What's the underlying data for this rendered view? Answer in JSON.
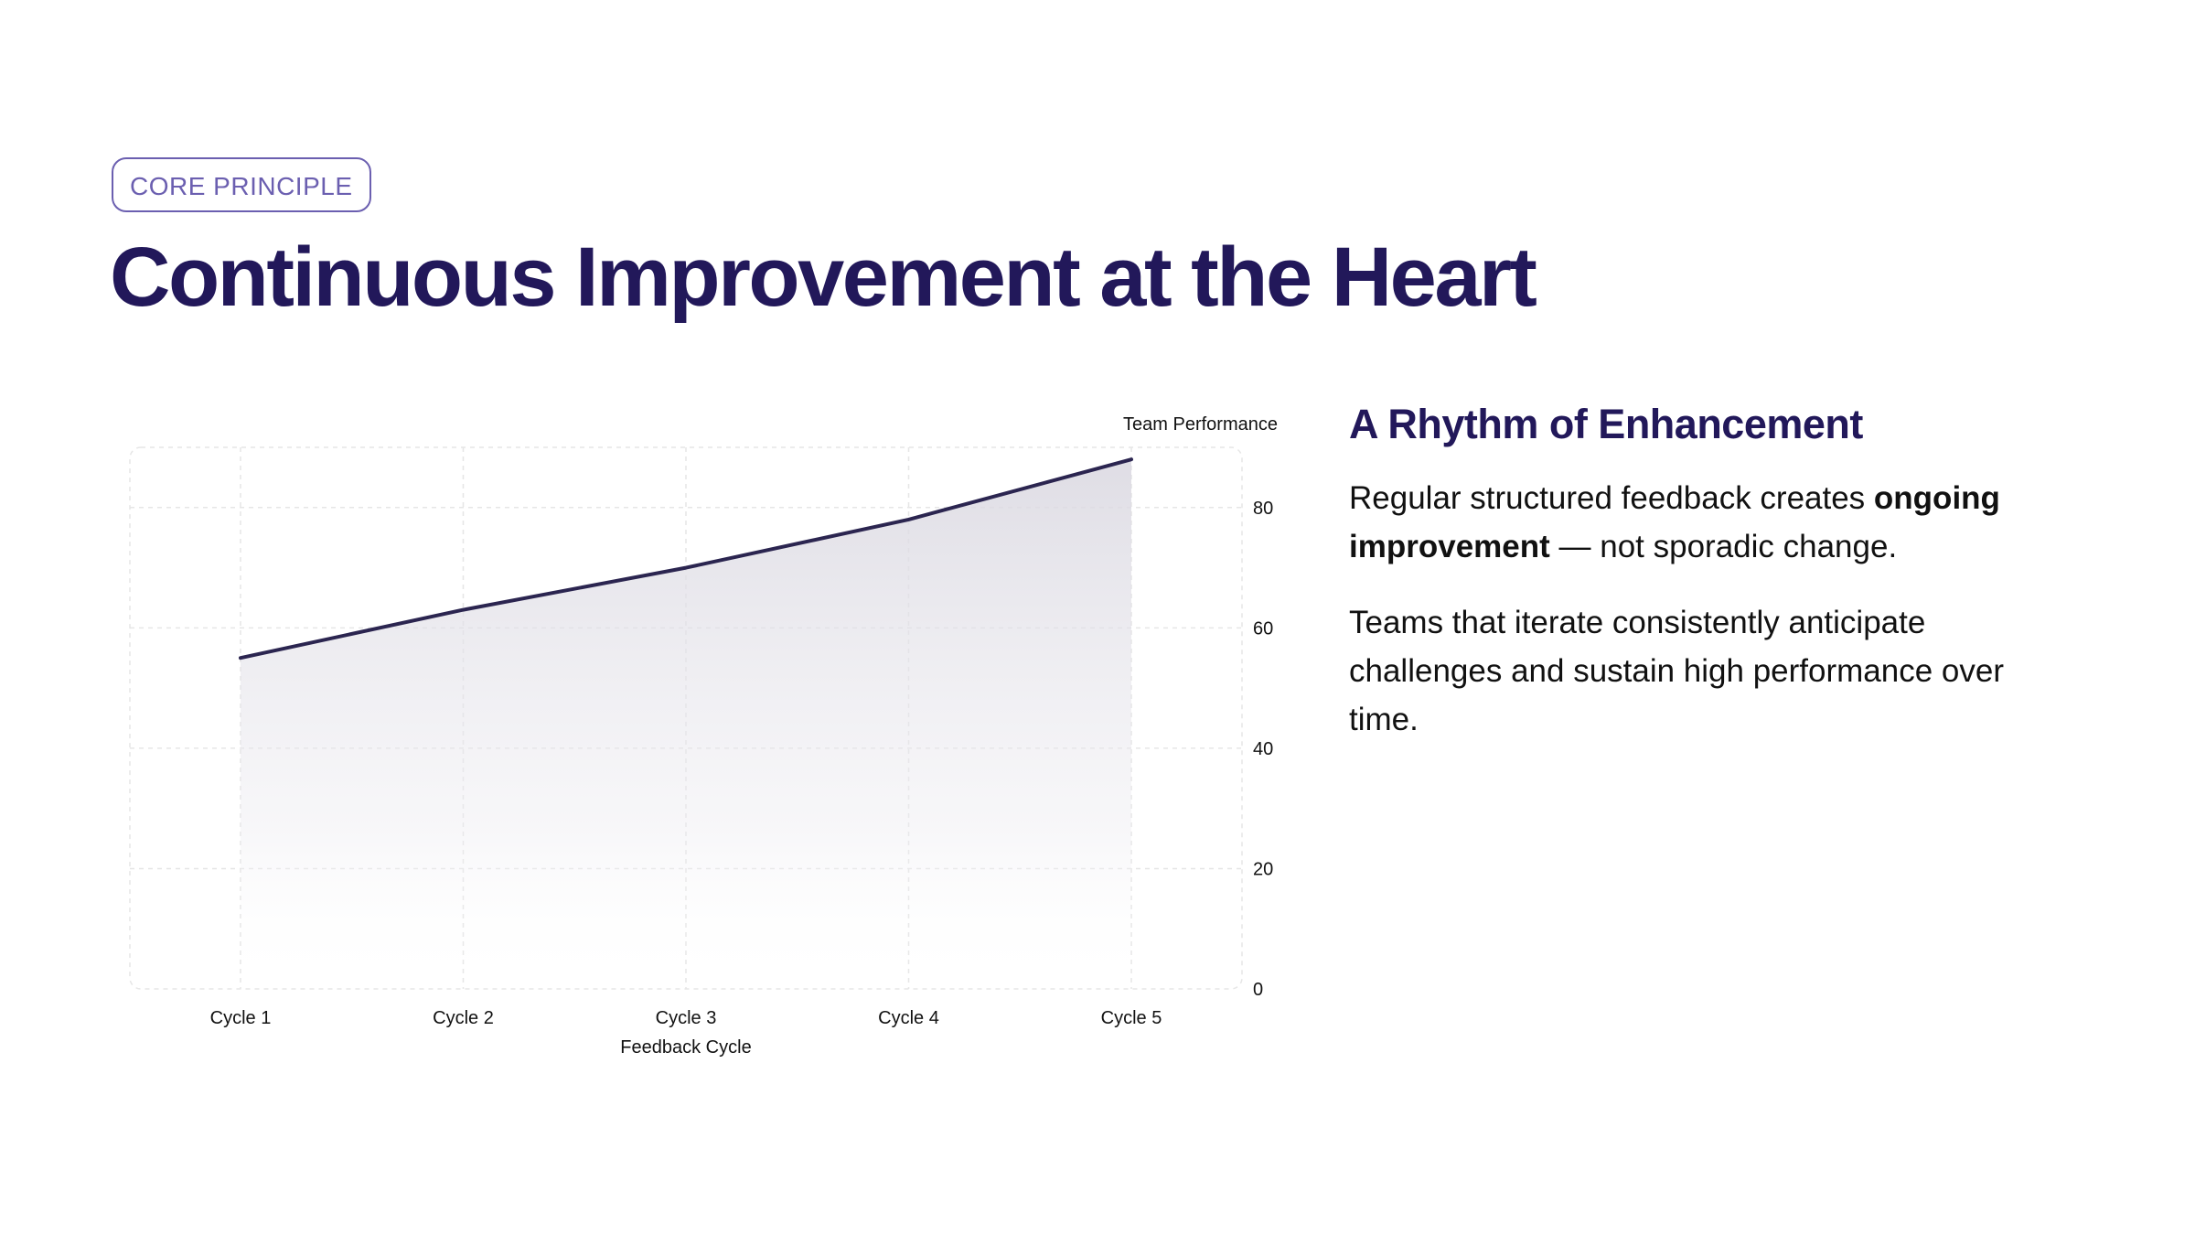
{
  "badge": "CORE PRINCIPLE",
  "title": "Continuous Improvement at the Heart",
  "side": {
    "heading": "A Rhythm of Enhancement",
    "p1_before": "Regular structured feedback creates ",
    "p1_bold": "ongoing improvement",
    "p1_after": " — not sporadic change.",
    "p2": "Teams that iterate consistently anticipate challenges and sustain high performance over time."
  },
  "colors": {
    "title": "#22185a",
    "badge": "#6b5fb0",
    "line": "#2b2550",
    "area_top": "#d9d7e0",
    "grid": "#e6e6e6"
  },
  "chart_data": {
    "type": "area",
    "categories": [
      "Cycle 1",
      "Cycle 2",
      "Cycle 3",
      "Cycle 4",
      "Cycle 5"
    ],
    "values": [
      55,
      63,
      70,
      78,
      88
    ],
    "xlabel": "Feedback Cycle",
    "ylabel": "Team Performance",
    "ylim": [
      0,
      90
    ],
    "yticks": [
      0,
      20,
      40,
      60,
      80
    ],
    "y_axis_side": "right",
    "grid": true
  }
}
